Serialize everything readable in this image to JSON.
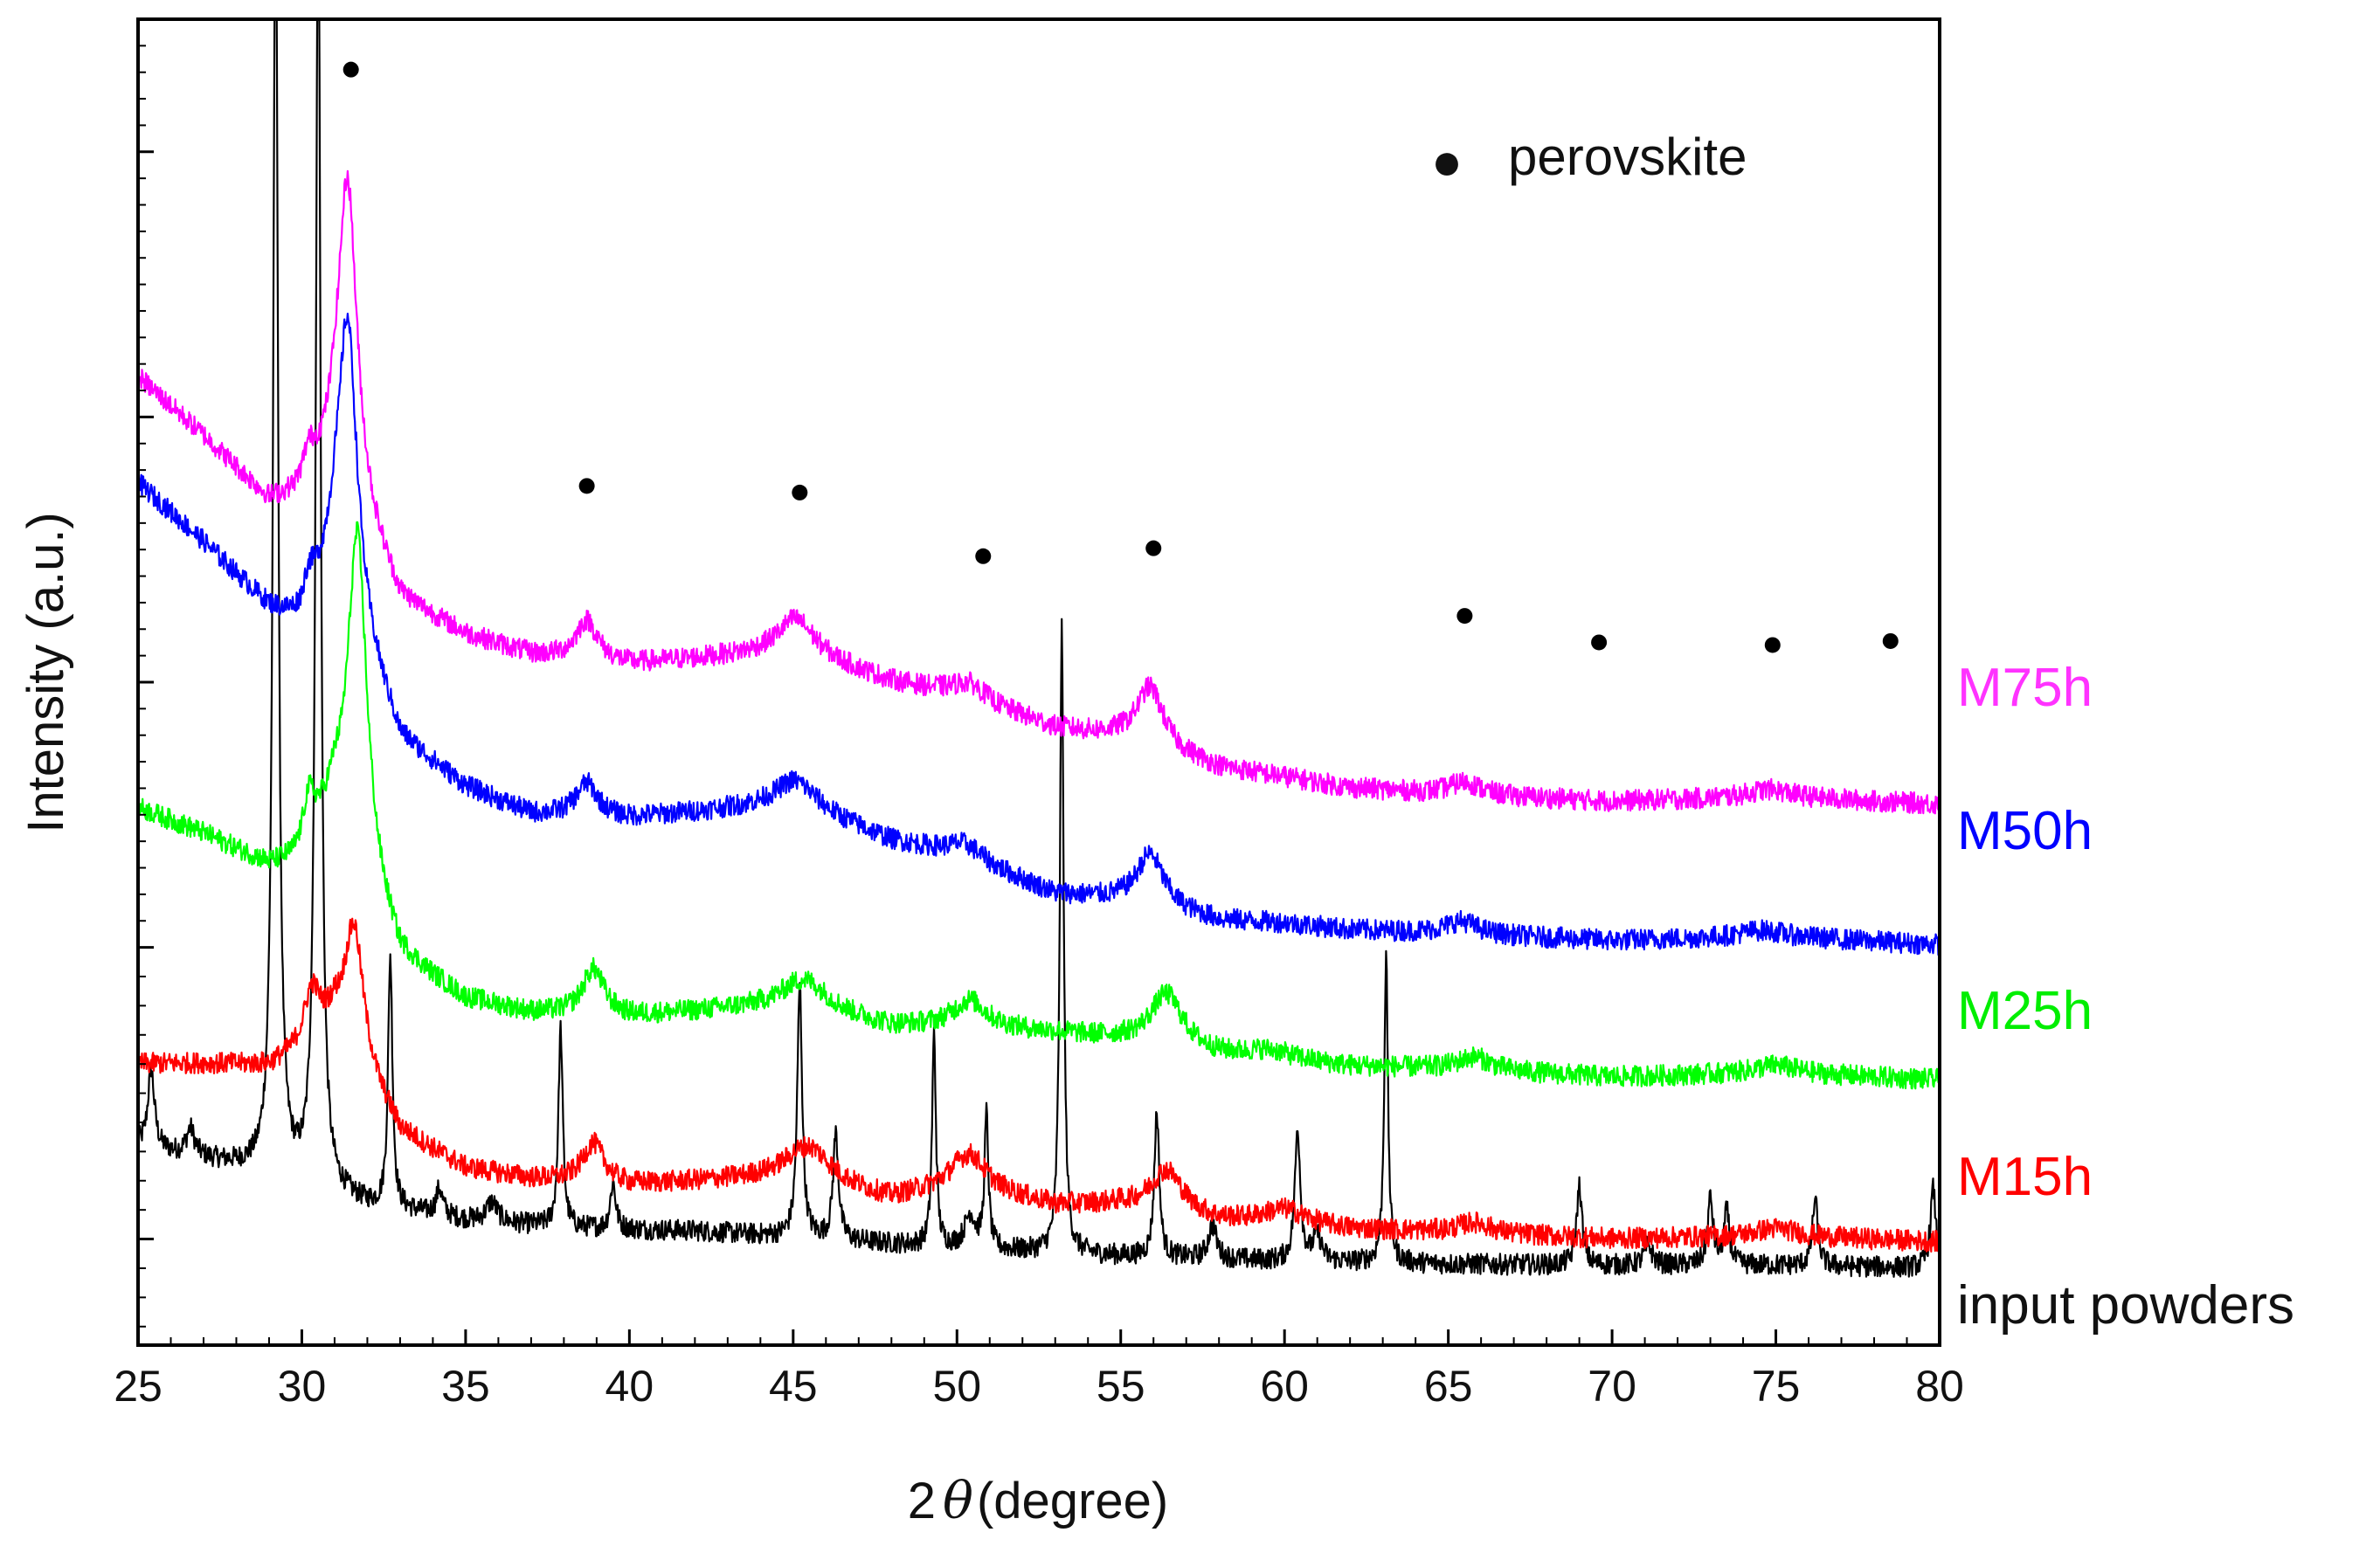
{
  "chart_data": {
    "type": "line",
    "title": "",
    "xlabel_prefix": "2",
    "xlabel_theta": "θ",
    "xlabel_suffix": "(degree)",
    "ylabel": "Intensity (a.u.)",
    "xlim": [
      25,
      80
    ],
    "ylim": [
      0,
      100
    ],
    "xticks": [
      25,
      30,
      35,
      40,
      45,
      50,
      55,
      60,
      65,
      70,
      75,
      80
    ],
    "xtick_labels": [
      "25",
      "30",
      "35",
      "40",
      "45",
      "50",
      "55",
      "60",
      "65",
      "70",
      "75",
      "80"
    ],
    "yticks_major": [
      8,
      30,
      50,
      70,
      90
    ],
    "legend": {
      "marker": "●",
      "label": "perovskite",
      "placement": "top-right"
    },
    "perovskite_markers": [
      {
        "x": 31.5,
        "y": 96.2
      },
      {
        "x": 38.7,
        "y": 64.8
      },
      {
        "x": 45.2,
        "y": 64.3
      },
      {
        "x": 50.8,
        "y": 59.5
      },
      {
        "x": 56.0,
        "y": 60.1
      },
      {
        "x": 65.5,
        "y": 55.0
      },
      {
        "x": 69.6,
        "y": 53.0
      },
      {
        "x": 74.9,
        "y": 52.8
      },
      {
        "x": 78.5,
        "y": 53.1
      }
    ],
    "series": [
      {
        "name": "input powders",
        "color": "#000000",
        "noise": 0.8,
        "points": [
          [
            25,
            15.0
          ],
          [
            25.5,
            14.7
          ],
          [
            27,
            14.0
          ],
          [
            29,
            13.0
          ],
          [
            32,
            10.5
          ],
          [
            35,
            9.4
          ],
          [
            38,
            8.8
          ],
          [
            42,
            8.6
          ],
          [
            50,
            7.3
          ],
          [
            55,
            6.7
          ],
          [
            60,
            6.3
          ],
          [
            65,
            6.1
          ],
          [
            70,
            6.0
          ],
          [
            75,
            6.0
          ],
          [
            80,
            5.8
          ]
        ],
        "peaks": [
          {
            "x": 25.4,
            "h": 6.0,
            "w": 0.12
          },
          {
            "x": 26.6,
            "h": 2.0,
            "w": 0.15
          },
          {
            "x": 29.2,
            "h": 100,
            "w": 0.09
          },
          {
            "x": 30.5,
            "h": 100,
            "w": 0.09
          },
          {
            "x": 32.7,
            "h": 19.0,
            "w": 0.08
          },
          {
            "x": 34.2,
            "h": 2.0,
            "w": 0.12
          },
          {
            "x": 35.8,
            "h": 1.5,
            "w": 0.2
          },
          {
            "x": 37.9,
            "h": 15.0,
            "w": 0.08
          },
          {
            "x": 39.5,
            "h": 3.5,
            "w": 0.1
          },
          {
            "x": 45.2,
            "h": 19.0,
            "w": 0.09
          },
          {
            "x": 46.3,
            "h": 8.0,
            "w": 0.1
          },
          {
            "x": 49.3,
            "h": 16.0,
            "w": 0.07
          },
          {
            "x": 50.4,
            "h": 2.5,
            "w": 0.2
          },
          {
            "x": 50.9,
            "h": 10.0,
            "w": 0.07
          },
          {
            "x": 53.2,
            "h": 47.0,
            "w": 0.07
          },
          {
            "x": 56.1,
            "h": 11.0,
            "w": 0.09
          },
          {
            "x": 57.8,
            "h": 2.5,
            "w": 0.15
          },
          {
            "x": 60.4,
            "h": 10.0,
            "w": 0.1
          },
          {
            "x": 61.0,
            "h": 2.0,
            "w": 0.15
          },
          {
            "x": 63.1,
            "h": 23.0,
            "w": 0.07
          },
          {
            "x": 69.0,
            "h": 6.0,
            "w": 0.1
          },
          {
            "x": 71.1,
            "h": 1.5,
            "w": 0.15
          },
          {
            "x": 73.0,
            "h": 5.0,
            "w": 0.1
          },
          {
            "x": 73.5,
            "h": 4.0,
            "w": 0.1
          },
          {
            "x": 76.2,
            "h": 5.0,
            "w": 0.1
          },
          {
            "x": 79.8,
            "h": 6.0,
            "w": 0.1
          }
        ]
      },
      {
        "name": "M15h",
        "color": "#ff0000",
        "noise": 0.8,
        "points": [
          [
            25,
            21.2
          ],
          [
            27,
            21.2
          ],
          [
            29,
            21.0
          ],
          [
            30,
            22.0
          ],
          [
            31,
            24.0
          ],
          [
            33,
            16.0
          ],
          [
            35,
            13.3
          ],
          [
            37,
            12.5
          ],
          [
            40,
            12.0
          ],
          [
            45,
            12.7
          ],
          [
            48,
            11.0
          ],
          [
            50,
            12.0
          ],
          [
            53,
            10.5
          ],
          [
            55,
            10.5
          ],
          [
            58,
            9.3
          ],
          [
            60,
            9.2
          ],
          [
            62,
            8.7
          ],
          [
            65,
            8.5
          ],
          [
            70,
            8.0
          ],
          [
            75,
            8.2
          ],
          [
            80,
            7.8
          ]
        ],
        "peaks": [
          {
            "x": 30.3,
            "h": 4.0,
            "w": 0.3
          },
          {
            "x": 31.6,
            "h": 10.0,
            "w": 0.35
          },
          {
            "x": 38.9,
            "h": 3.0,
            "w": 0.4
          },
          {
            "x": 45.5,
            "h": 2.5,
            "w": 0.8
          },
          {
            "x": 50.4,
            "h": 2.5,
            "w": 0.6
          },
          {
            "x": 56.4,
            "h": 3.2,
            "w": 0.6
          },
          {
            "x": 60.0,
            "h": 1.0,
            "w": 0.8
          },
          {
            "x": 65.8,
            "h": 0.8,
            "w": 0.6
          },
          {
            "x": 75.0,
            "h": 0.6,
            "w": 0.8
          }
        ]
      },
      {
        "name": "M25h",
        "color": "#00ff00",
        "noise": 0.8,
        "points": [
          [
            25,
            40.5
          ],
          [
            27,
            38.5
          ],
          [
            29,
            36.0
          ],
          [
            30,
            36.0
          ],
          [
            31,
            40.0
          ],
          [
            33,
            29.0
          ],
          [
            35,
            26.0
          ],
          [
            37,
            25.0
          ],
          [
            40,
            24.7
          ],
          [
            45,
            25.7
          ],
          [
            48,
            24.0
          ],
          [
            50,
            24.0
          ],
          [
            53,
            23.5
          ],
          [
            55,
            23.0
          ],
          [
            58,
            21.8
          ],
          [
            60,
            21.5
          ],
          [
            62,
            21.0
          ],
          [
            65,
            20.8
          ],
          [
            70,
            20.2
          ],
          [
            75,
            20.5
          ],
          [
            80,
            20.0
          ]
        ],
        "peaks": [
          {
            "x": 30.2,
            "h": 4.0,
            "w": 0.25
          },
          {
            "x": 31.7,
            "h": 25.0,
            "w": 0.35
          },
          {
            "x": 38.9,
            "h": 3.5,
            "w": 0.4
          },
          {
            "x": 45.4,
            "h": 2.0,
            "w": 0.8
          },
          {
            "x": 50.4,
            "h": 2.0,
            "w": 0.6
          },
          {
            "x": 56.4,
            "h": 4.0,
            "w": 0.6
          },
          {
            "x": 59.5,
            "h": 0.6,
            "w": 0.8
          },
          {
            "x": 65.8,
            "h": 1.0,
            "w": 0.6
          },
          {
            "x": 75.0,
            "h": 0.6,
            "w": 0.8
          }
        ]
      },
      {
        "name": "M50h",
        "color": "#0000ff",
        "noise": 0.8,
        "points": [
          [
            25,
            65.0
          ],
          [
            27,
            60.5
          ],
          [
            29,
            55.5
          ],
          [
            30,
            54.0
          ],
          [
            31,
            58.0
          ],
          [
            33,
            45.5
          ],
          [
            35,
            42.0
          ],
          [
            37,
            40.0
          ],
          [
            40,
            39.7
          ],
          [
            45,
            40.8
          ],
          [
            48,
            38.0
          ],
          [
            50,
            37.0
          ],
          [
            53,
            34.0
          ],
          [
            55,
            33.5
          ],
          [
            58,
            32.0
          ],
          [
            60,
            31.8
          ],
          [
            62,
            31.3
          ],
          [
            65,
            31.0
          ],
          [
            70,
            30.5
          ],
          [
            75,
            30.8
          ],
          [
            80,
            30.2
          ]
        ],
        "peaks": [
          {
            "x": 30.2,
            "h": 2.5,
            "w": 0.25
          },
          {
            "x": 31.4,
            "h": 22.0,
            "w": 0.35
          },
          {
            "x": 38.7,
            "h": 2.5,
            "w": 0.4
          },
          {
            "x": 45.1,
            "h": 1.8,
            "w": 0.8
          },
          {
            "x": 50.3,
            "h": 1.0,
            "w": 0.6
          },
          {
            "x": 55.9,
            "h": 4.0,
            "w": 0.5
          },
          {
            "x": 65.4,
            "h": 1.0,
            "w": 0.6
          },
          {
            "x": 74.5,
            "h": 0.5,
            "w": 0.8
          }
        ]
      },
      {
        "name": "M75h",
        "color": "#ff00ff",
        "noise": 0.8,
        "points": [
          [
            25,
            73.0
          ],
          [
            27,
            68.5
          ],
          [
            29,
            63.5
          ],
          [
            30,
            63.5
          ],
          [
            31,
            66.0
          ],
          [
            33,
            56.0
          ],
          [
            35,
            53.5
          ],
          [
            37,
            52.0
          ],
          [
            40,
            51.3
          ],
          [
            45,
            52.3
          ],
          [
            48,
            50.0
          ],
          [
            50,
            49.0
          ],
          [
            53,
            46.5
          ],
          [
            55,
            45.8
          ],
          [
            58,
            43.5
          ],
          [
            60,
            42.8
          ],
          [
            62,
            42.0
          ],
          [
            65,
            41.5
          ],
          [
            70,
            41.0
          ],
          [
            75,
            41.3
          ],
          [
            80,
            40.8
          ]
        ],
        "peaks": [
          {
            "x": 30.2,
            "h": 2.5,
            "w": 0.25
          },
          {
            "x": 31.4,
            "h": 24.0,
            "w": 0.35
          },
          {
            "x": 38.7,
            "h": 3.0,
            "w": 0.4
          },
          {
            "x": 45.1,
            "h": 2.5,
            "w": 0.7
          },
          {
            "x": 50.4,
            "h": 1.2,
            "w": 0.6
          },
          {
            "x": 55.9,
            "h": 4.5,
            "w": 0.5
          },
          {
            "x": 65.5,
            "h": 1.0,
            "w": 0.6
          },
          {
            "x": 74.8,
            "h": 0.6,
            "w": 0.8
          }
        ]
      }
    ],
    "series_labels": [
      {
        "text": "M75h",
        "color": "#ff33ff"
      },
      {
        "text": "M50h",
        "color": "#0000ff"
      },
      {
        "text": "M25h",
        "color": "#00ee00"
      },
      {
        "text": "M15h",
        "color": "#ff0000"
      },
      {
        "text": "input powders",
        "color": "#111111"
      }
    ]
  }
}
